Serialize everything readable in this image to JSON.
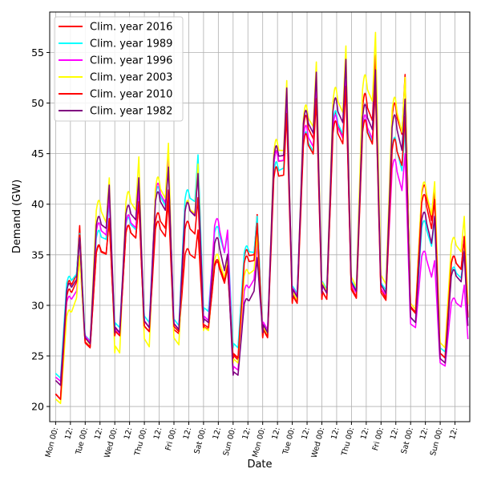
{
  "chart_data": {
    "type": "line",
    "xlabel": "Date",
    "ylabel": "Demand (GW)",
    "ylim": [
      18.5,
      59
    ],
    "xlim": [
      -0.2,
      14.0
    ],
    "y_ticks": [
      20,
      25,
      30,
      35,
      40,
      45,
      50,
      55
    ],
    "x_ticks": [
      0,
      0.5,
      1,
      1.5,
      2,
      2.5,
      3,
      3.5,
      4,
      4.5,
      5,
      5.5,
      6,
      6.5,
      7,
      7.5,
      8,
      8.5,
      9,
      9.5,
      10,
      10.5,
      11,
      11.5,
      12,
      12.5,
      13,
      13.5
    ],
    "x_tick_labels": [
      "Mon 00:",
      "12:",
      "Tue 00:",
      "12:",
      "Wed 00:",
      "12:",
      "Thu 00:",
      "12:",
      "Fri 00:",
      "12:",
      "Sat 00:",
      "12:",
      "Sun 00:",
      "12:",
      "Mon 00:",
      "12:",
      "Tue 00:",
      "12:",
      "Wed 00:",
      "12:",
      "Thu 00:",
      "12:",
      "Fri 00:",
      "12:",
      "Sat 00:",
      "12:",
      "Sun 00:",
      "12:"
    ],
    "grid": true,
    "legend_position": "top-left",
    "day_profiles": {
      "peak_height": [
        [
          14,
          12,
          13,
          13,
          10,
          8,
          13,
          22,
          22,
          22,
          24,
          23,
          15,
          12
        ],
        [
          12,
          13,
          13,
          16,
          16,
          10,
          12,
          20,
          19,
          21,
          20,
          18,
          12,
          10
        ],
        [
          10,
          14,
          14,
          17,
          15,
          12,
          10,
          21,
          20,
          21,
          21,
          16,
          9,
          8
        ],
        [
          11,
          17,
          19,
          20,
          17,
          9,
          11,
          23,
          23,
          24,
          25,
          22,
          15,
          13
        ],
        [
          13,
          12,
          13,
          14,
          13,
          8,
          12,
          20,
          20,
          21,
          21,
          19,
          14,
          12
        ],
        [
          12,
          15,
          15,
          16,
          15,
          10,
          9,
          22,
          22,
          23,
          22,
          21,
          13,
          11
        ]
      ],
      "night_trough": [
        [
          20.7,
          25.8,
          27.0,
          27.4,
          27.2,
          27.6,
          24.6,
          26.8,
          30.3,
          30.6,
          30.8,
          30.7,
          29.3,
          24.8
        ],
        [
          22.8,
          26.5,
          27.8,
          28.3,
          28.0,
          29.4,
          25.8,
          27.4,
          31.2,
          31.6,
          31.6,
          31.5,
          28.3,
          25.4
        ],
        [
          22.5,
          26.4,
          27.2,
          27.8,
          27.6,
          28.5,
          23.6,
          27.6,
          31.0,
          31.2,
          31.2,
          31.0,
          27.8,
          24.0
        ],
        [
          20.3,
          26.1,
          25.3,
          25.9,
          26.1,
          27.5,
          24.3,
          27.1,
          30.5,
          31.4,
          31.8,
          32.1,
          29.6,
          25.8
        ],
        [
          20.7,
          25.9,
          27.0,
          27.4,
          27.4,
          27.8,
          24.8,
          26.9,
          30.2,
          30.6,
          30.7,
          30.5,
          29.2,
          24.8
        ],
        [
          22.1,
          26.2,
          27.3,
          27.8,
          27.6,
          28.3,
          23.1,
          27.3,
          30.8,
          31.2,
          31.4,
          31.2,
          28.3,
          24.3
        ]
      ]
    },
    "series": [
      {
        "name": "Clim. year 2016",
        "color": "#ff0000"
      },
      {
        "name": "Clim. year 1989",
        "color": "#00ffff"
      },
      {
        "name": "Clim. year 1996",
        "color": "#ff00ff"
      },
      {
        "name": "Clim. year 2003",
        "color": "#ffff00"
      },
      {
        "name": "Clim. year 2010",
        "color": "#ff0000"
      },
      {
        "name": "Clim. year 1982",
        "color": "#800080"
      }
    ]
  }
}
